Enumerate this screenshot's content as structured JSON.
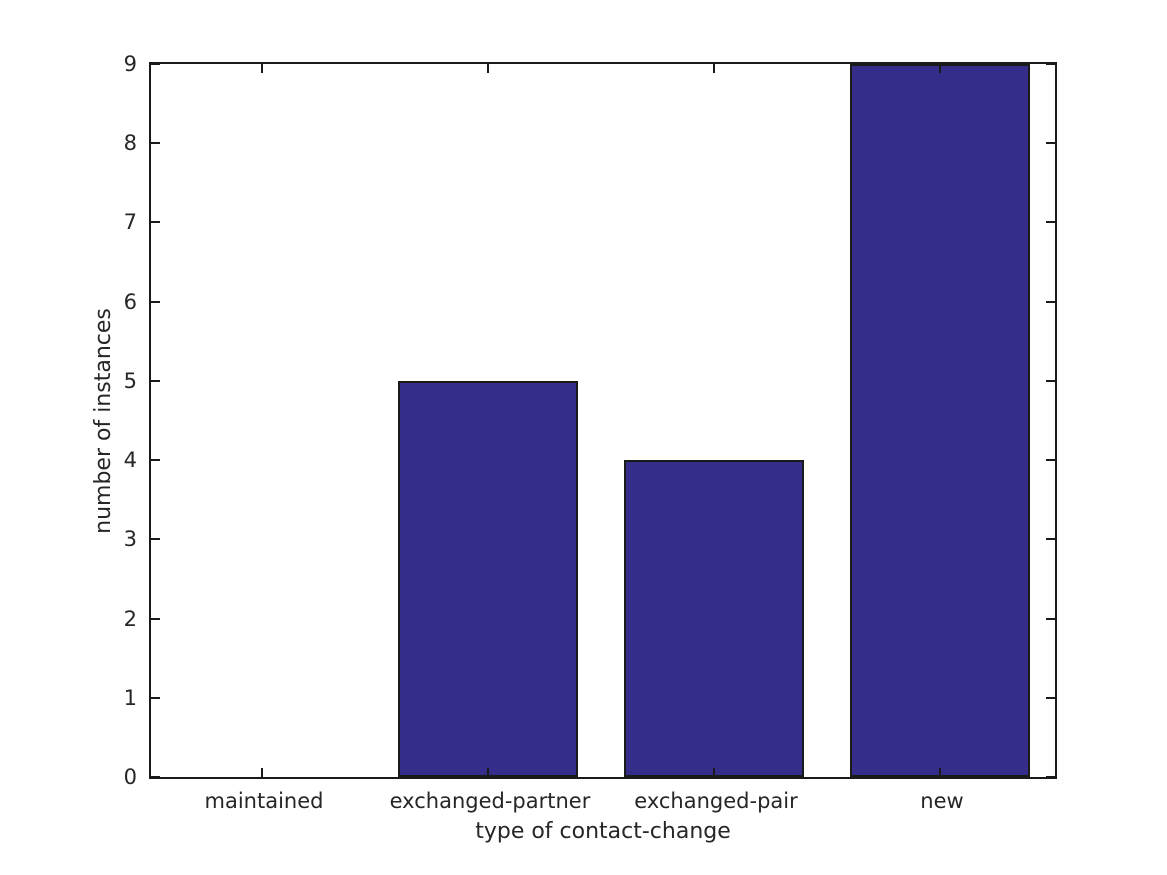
{
  "figure": {
    "background": "#ffffff"
  },
  "chart_data": {
    "type": "bar",
    "categories": [
      "maintained",
      "exchanged-partner",
      "exchanged-pair",
      "new"
    ],
    "values": [
      0,
      5,
      4,
      9
    ],
    "title": "",
    "xlabel": "type of contact-change",
    "ylabel": "number of instances",
    "ylim": [
      0,
      9
    ],
    "yticks": [
      0,
      1,
      2,
      3,
      4,
      5,
      6,
      7,
      8,
      9
    ],
    "bar_color": "#352d8a",
    "bar_edge_color": "#1a1a1a",
    "axis_color": "#1a1a1a",
    "text_color": "#262626",
    "bar_width_fraction": 0.8,
    "grid": false,
    "legend_position": "none",
    "tick_direction": "in",
    "frame": "box"
  }
}
